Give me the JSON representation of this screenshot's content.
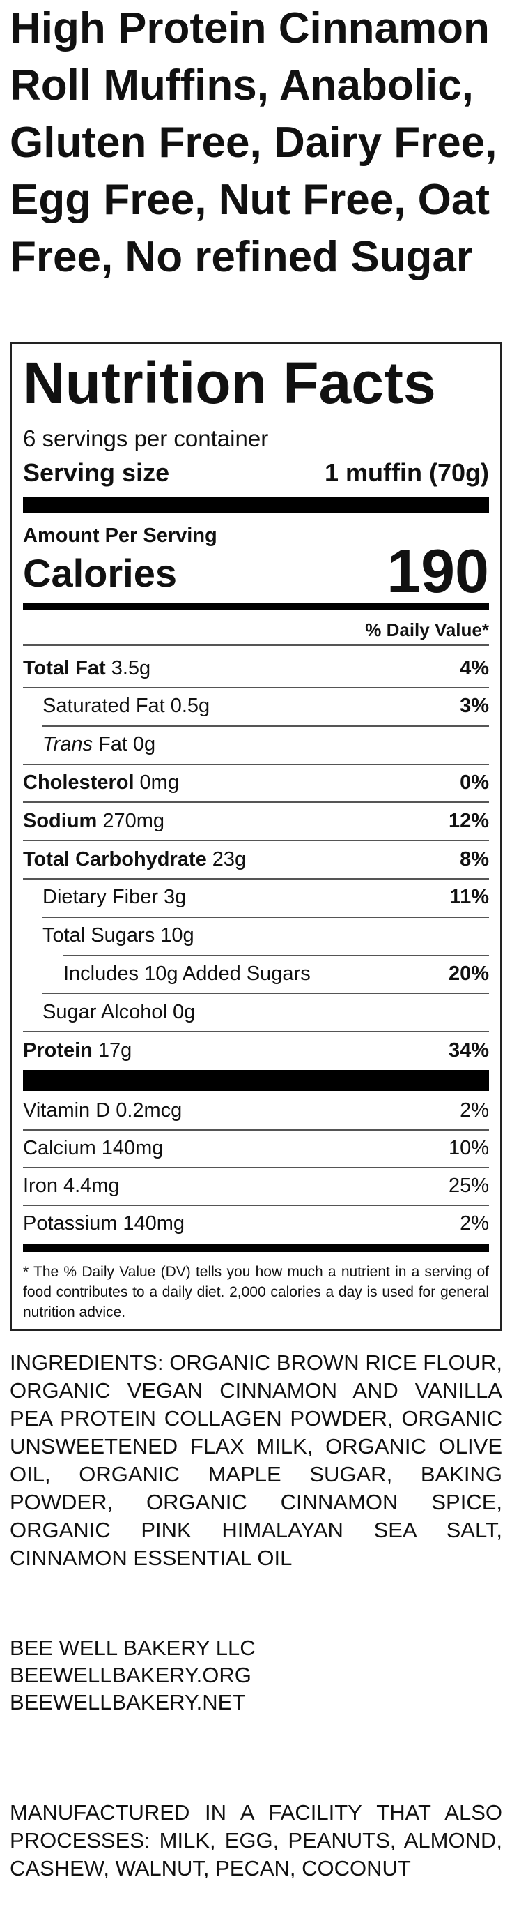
{
  "title_lines": [
    "High Protein Cinnamon",
    "Roll Muffins, Anabolic,",
    "Gluten Free, Dairy Free,",
    "Egg Free, Nut Free, Oat",
    "Free, No refined Sugar"
  ],
  "nutrition_facts": {
    "heading": "Nutrition Facts",
    "servings": "6 servings per container",
    "serving_size_label": "Serving size",
    "serving_size": "1 muffin (70g)",
    "amount_per_serving": "Amount Per Serving",
    "calories_label": "Calories",
    "calories": 190,
    "daily_value_header": "% Daily Value*",
    "nutrients": [
      {
        "name": "Total Fat",
        "amount": "3.5g",
        "dv": "4%"
      },
      {
        "name": "Saturated Fat",
        "amount": "0.5g",
        "dv": "3%"
      },
      {
        "name_italic": "Trans",
        "name": "Fat",
        "amount": "0g"
      },
      {
        "name": "Cholesterol",
        "amount": "0mg",
        "dv": "0%"
      },
      {
        "name": "Sodium",
        "amount": "270mg",
        "dv": "12%"
      },
      {
        "name": "Total Carbohydrate",
        "amount": "23g",
        "dv": "8%"
      },
      {
        "name": "Dietary Fiber",
        "amount": "3g",
        "dv": "11%"
      },
      {
        "name": "Total Sugars",
        "amount": "10g"
      },
      {
        "name": "Includes 10g Added Sugars",
        "dv": "20%"
      },
      {
        "name": "Sugar Alcohol",
        "amount": "0g"
      },
      {
        "name": "Protein",
        "amount": "17g",
        "dv": "34%"
      }
    ],
    "vitamins": [
      {
        "name": "Vitamin D",
        "amount": "0.2mcg",
        "dv": "2%"
      },
      {
        "name": "Calcium",
        "amount": "140mg",
        "dv": "10%"
      },
      {
        "name": "Iron",
        "amount": "4.4mg",
        "dv": "25%"
      },
      {
        "name": "Potassium",
        "amount": "140mg",
        "dv": "2%"
      }
    ],
    "footnote": "* The % Daily Value (DV) tells you how much a nutrient in a serving of food contributes to a daily diet. 2,000 calories a day is used for general nutrition advice."
  },
  "ingredients": "INGREDIENTS: ORGANIC BROWN RICE FLOUR, ORGANIC VEGAN CINNAMON AND VANILLA PEA PROTEIN COLLAGEN POWDER, ORGANIC UNSWEETENED FLAX MILK, ORGANIC OLIVE OIL, ORGANIC MAPLE SUGAR, BAKING POWDER, ORGANIC CINNAMON SPICE, ORGANIC PINK HIMALAYAN SEA SALT, CINNAMON ESSENTIAL OIL",
  "company_lines": [
    "BEE WELL BAKERY LLC",
    "BEEWELLBAKERY.ORG",
    "BEEWELLBAKERY.NET"
  ],
  "allergen_statement": "MANUFACTURED IN A FACILITY THAT ALSO PROCESSES: MILK, EGG, PEANUTS, ALMOND, CASHEW, WALNUT, PECAN, COCONUT"
}
